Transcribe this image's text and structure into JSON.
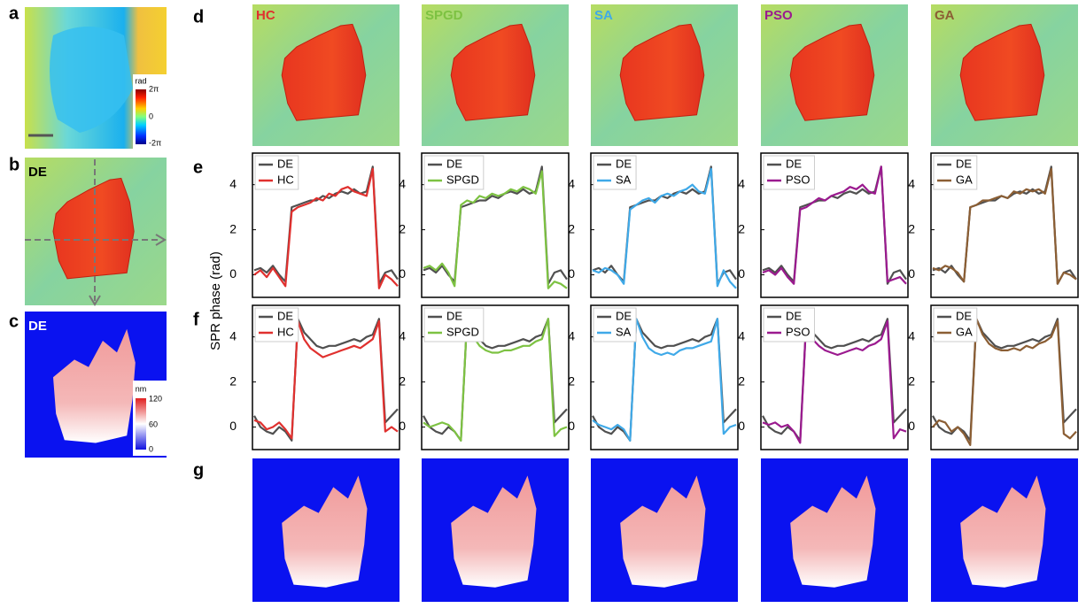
{
  "panels": {
    "a": {
      "label": "a",
      "colorbar": {
        "title": "rad",
        "ticks": [
          "2π",
          0,
          "-2π"
        ]
      }
    },
    "b": {
      "label": "b",
      "tag": "DE"
    },
    "c": {
      "label": "c",
      "tag": "DE",
      "colorbar": {
        "title": "nm",
        "ticks": [
          120,
          60,
          0
        ]
      }
    },
    "d": {
      "label": "d"
    },
    "e": {
      "label": "e"
    },
    "f": {
      "label": "f"
    },
    "g": {
      "label": "g"
    }
  },
  "y_axis_label": "SPR phase (rad)",
  "chart_data": [
    {
      "type": "line",
      "categories": [
        null,
        null,
        null,
        null,
        null,
        null,
        null,
        null,
        null,
        null,
        null,
        null,
        null,
        null,
        null,
        null,
        null,
        null,
        null,
        null,
        null,
        null,
        null,
        null
      ],
      "ylim": [
        -1,
        5.4
      ],
      "yticks": [
        0,
        2,
        4
      ],
      "series": [
        {
          "name": "DE",
          "color": "#505050",
          "values": [
            0.2,
            0.3,
            0.1,
            0.4,
            0.0,
            -0.3,
            3.0,
            3.1,
            3.2,
            3.3,
            3.3,
            3.5,
            3.4,
            3.6,
            3.7,
            3.6,
            3.8,
            3.6,
            3.7,
            4.8,
            -0.4,
            0.1,
            0.2,
            -0.2
          ]
        },
        {
          "name": "HC",
          "color": "#e0302e",
          "values": [
            0.0,
            0.2,
            -0.1,
            0.3,
            -0.1,
            -0.5,
            2.8,
            3.0,
            3.1,
            3.2,
            3.4,
            3.3,
            3.6,
            3.5,
            3.8,
            3.9,
            3.7,
            3.6,
            3.5,
            4.7,
            -0.6,
            0.0,
            -0.2,
            -0.5
          ]
        }
      ]
    },
    {
      "type": "line",
      "categories": [
        null,
        null,
        null,
        null,
        null,
        null,
        null,
        null,
        null,
        null,
        null,
        null,
        null,
        null,
        null,
        null,
        null,
        null,
        null,
        null,
        null,
        null,
        null,
        null
      ],
      "ylim": [
        -1,
        5.4
      ],
      "yticks": [
        0,
        2,
        4
      ],
      "series": [
        {
          "name": "DE",
          "color": "#505050",
          "values": [
            0.2,
            0.3,
            0.1,
            0.4,
            0.0,
            -0.3,
            3.0,
            3.1,
            3.2,
            3.3,
            3.3,
            3.5,
            3.4,
            3.6,
            3.7,
            3.6,
            3.8,
            3.6,
            3.7,
            4.8,
            -0.4,
            0.1,
            0.2,
            -0.2
          ]
        },
        {
          "name": "SPGD",
          "color": "#7dc242",
          "values": [
            0.3,
            0.4,
            0.2,
            0.5,
            0.1,
            -0.5,
            3.1,
            3.3,
            3.2,
            3.5,
            3.4,
            3.6,
            3.5,
            3.6,
            3.8,
            3.7,
            3.9,
            3.8,
            3.6,
            4.6,
            -0.6,
            -0.3,
            -0.4,
            -0.6
          ]
        }
      ]
    },
    {
      "type": "line",
      "categories": [
        null,
        null,
        null,
        null,
        null,
        null,
        null,
        null,
        null,
        null,
        null,
        null,
        null,
        null,
        null,
        null,
        null,
        null,
        null,
        null,
        null,
        null,
        null,
        null
      ],
      "ylim": [
        -1,
        5.4
      ],
      "yticks": [
        0,
        2,
        4
      ],
      "series": [
        {
          "name": "DE",
          "color": "#505050",
          "values": [
            0.2,
            0.3,
            0.1,
            0.4,
            0.0,
            -0.3,
            3.0,
            3.1,
            3.2,
            3.3,
            3.3,
            3.5,
            3.4,
            3.6,
            3.7,
            3.6,
            3.8,
            3.6,
            3.7,
            4.8,
            -0.4,
            0.1,
            0.2,
            -0.2
          ]
        },
        {
          "name": "SA",
          "color": "#3fa9e8",
          "values": [
            0.2,
            0.1,
            0.3,
            0.2,
            0.0,
            -0.4,
            2.9,
            3.1,
            3.3,
            3.4,
            3.2,
            3.5,
            3.6,
            3.5,
            3.7,
            3.8,
            4.0,
            3.7,
            3.6,
            4.7,
            -0.5,
            0.2,
            -0.3,
            -0.6
          ]
        }
      ]
    },
    {
      "type": "line",
      "categories": [
        null,
        null,
        null,
        null,
        null,
        null,
        null,
        null,
        null,
        null,
        null,
        null,
        null,
        null,
        null,
        null,
        null,
        null,
        null,
        null,
        null,
        null,
        null,
        null
      ],
      "ylim": [
        -1,
        5.4
      ],
      "yticks": [
        0,
        2,
        4
      ],
      "series": [
        {
          "name": "DE",
          "color": "#505050",
          "values": [
            0.2,
            0.3,
            0.1,
            0.4,
            0.0,
            -0.3,
            3.0,
            3.1,
            3.2,
            3.3,
            3.3,
            3.5,
            3.4,
            3.6,
            3.7,
            3.6,
            3.8,
            3.6,
            3.7,
            4.8,
            -0.4,
            0.1,
            0.2,
            -0.2
          ]
        },
        {
          "name": "PSO",
          "color": "#9b1a8f",
          "values": [
            0.1,
            0.2,
            0.0,
            0.3,
            -0.1,
            -0.4,
            2.9,
            3.0,
            3.2,
            3.4,
            3.3,
            3.5,
            3.6,
            3.7,
            3.9,
            3.8,
            4.0,
            3.7,
            3.6,
            4.8,
            -0.3,
            -0.2,
            -0.1,
            -0.4
          ]
        }
      ]
    },
    {
      "type": "line",
      "categories": [
        null,
        null,
        null,
        null,
        null,
        null,
        null,
        null,
        null,
        null,
        null,
        null,
        null,
        null,
        null,
        null,
        null,
        null,
        null,
        null,
        null,
        null,
        null,
        null
      ],
      "ylim": [
        -1,
        5.4
      ],
      "yticks": [
        0,
        2,
        4
      ],
      "series": [
        {
          "name": "DE",
          "color": "#505050",
          "values": [
            0.2,
            0.3,
            0.1,
            0.4,
            0.0,
            -0.3,
            3.0,
            3.1,
            3.2,
            3.3,
            3.3,
            3.5,
            3.4,
            3.6,
            3.7,
            3.6,
            3.8,
            3.6,
            3.7,
            4.8,
            -0.4,
            0.1,
            0.2,
            -0.2
          ]
        },
        {
          "name": "GA",
          "color": "#8b5e34",
          "values": [
            0.3,
            0.2,
            0.4,
            0.3,
            0.1,
            -0.3,
            3.0,
            3.1,
            3.3,
            3.3,
            3.4,
            3.5,
            3.4,
            3.7,
            3.6,
            3.8,
            3.7,
            3.8,
            3.6,
            4.7,
            -0.4,
            0.1,
            0.0,
            -0.2
          ]
        }
      ]
    },
    {
      "type": "line",
      "categories": [
        null,
        null,
        null,
        null,
        null,
        null,
        null,
        null,
        null,
        null,
        null,
        null,
        null,
        null,
        null,
        null,
        null,
        null,
        null,
        null,
        null,
        null,
        null,
        null
      ],
      "ylim": [
        -1,
        5.4
      ],
      "yticks": [
        0,
        2,
        4
      ],
      "series": [
        {
          "name": "DE",
          "color": "#505050",
          "values": [
            0.5,
            0.0,
            -0.2,
            -0.3,
            0.0,
            -0.2,
            -0.6,
            4.8,
            4.2,
            3.9,
            3.6,
            3.5,
            3.6,
            3.6,
            3.7,
            3.8,
            3.9,
            3.8,
            4.0,
            4.1,
            4.8,
            0.2,
            0.5,
            0.8
          ]
        },
        {
          "name": "HC",
          "color": "#e0302e",
          "values": [
            0.3,
            0.2,
            -0.1,
            0.0,
            0.2,
            -0.1,
            -0.5,
            4.7,
            3.9,
            3.5,
            3.3,
            3.1,
            3.2,
            3.3,
            3.4,
            3.5,
            3.6,
            3.5,
            3.7,
            3.9,
            4.7,
            -0.2,
            0.0,
            -0.2
          ]
        }
      ]
    },
    {
      "type": "line",
      "categories": [
        null,
        null,
        null,
        null,
        null,
        null,
        null,
        null,
        null,
        null,
        null,
        null,
        null,
        null,
        null,
        null,
        null,
        null,
        null,
        null,
        null,
        null,
        null,
        null
      ],
      "ylim": [
        -1,
        5.4
      ],
      "yticks": [
        0,
        2,
        4
      ],
      "series": [
        {
          "name": "DE",
          "color": "#505050",
          "values": [
            0.5,
            0.0,
            -0.2,
            -0.3,
            0.0,
            -0.2,
            -0.6,
            4.8,
            4.2,
            3.9,
            3.6,
            3.5,
            3.6,
            3.6,
            3.7,
            3.8,
            3.9,
            3.8,
            4.0,
            4.1,
            4.8,
            0.2,
            0.5,
            0.8
          ]
        },
        {
          "name": "SPGD",
          "color": "#7dc242",
          "values": [
            0.2,
            0.0,
            0.1,
            0.2,
            0.1,
            -0.2,
            -0.6,
            4.8,
            4.0,
            3.6,
            3.4,
            3.3,
            3.3,
            3.4,
            3.4,
            3.5,
            3.6,
            3.6,
            3.8,
            3.9,
            4.8,
            -0.4,
            -0.1,
            0.0
          ]
        }
      ]
    },
    {
      "type": "line",
      "categories": [
        null,
        null,
        null,
        null,
        null,
        null,
        null,
        null,
        null,
        null,
        null,
        null,
        null,
        null,
        null,
        null,
        null,
        null,
        null,
        null,
        null,
        null,
        null,
        null
      ],
      "ylim": [
        -1,
        5.4
      ],
      "yticks": [
        0,
        2,
        4
      ],
      "series": [
        {
          "name": "DE",
          "color": "#505050",
          "values": [
            0.5,
            0.0,
            -0.2,
            -0.3,
            0.0,
            -0.2,
            -0.6,
            4.8,
            4.2,
            3.9,
            3.6,
            3.5,
            3.6,
            3.6,
            3.7,
            3.8,
            3.9,
            3.8,
            4.0,
            4.1,
            4.8,
            0.2,
            0.5,
            0.8
          ]
        },
        {
          "name": "SA",
          "color": "#3fa9e8",
          "values": [
            0.3,
            0.1,
            0.0,
            -0.1,
            0.1,
            -0.1,
            -0.6,
            4.8,
            4.0,
            3.5,
            3.3,
            3.2,
            3.3,
            3.2,
            3.4,
            3.5,
            3.5,
            3.6,
            3.7,
            3.8,
            4.8,
            -0.3,
            0.0,
            0.1
          ]
        }
      ]
    },
    {
      "type": "line",
      "categories": [
        null,
        null,
        null,
        null,
        null,
        null,
        null,
        null,
        null,
        null,
        null,
        null,
        null,
        null,
        null,
        null,
        null,
        null,
        null,
        null,
        null,
        null,
        null,
        null
      ],
      "ylim": [
        -1,
        5.4
      ],
      "yticks": [
        0,
        2,
        4
      ],
      "series": [
        {
          "name": "DE",
          "color": "#505050",
          "values": [
            0.5,
            0.0,
            -0.2,
            -0.3,
            0.0,
            -0.2,
            -0.6,
            4.8,
            4.2,
            3.9,
            3.6,
            3.5,
            3.6,
            3.6,
            3.7,
            3.8,
            3.9,
            3.8,
            4.0,
            4.1,
            4.8,
            0.2,
            0.5,
            0.8
          ]
        },
        {
          "name": "PSO",
          "color": "#9b1a8f",
          "values": [
            0.2,
            0.1,
            0.2,
            0.0,
            0.1,
            -0.2,
            -0.7,
            4.8,
            3.9,
            3.6,
            3.4,
            3.3,
            3.2,
            3.3,
            3.4,
            3.5,
            3.4,
            3.6,
            3.7,
            3.9,
            4.7,
            -0.5,
            -0.1,
            -0.2
          ]
        }
      ]
    },
    {
      "type": "line",
      "categories": [
        null,
        null,
        null,
        null,
        null,
        null,
        null,
        null,
        null,
        null,
        null,
        null,
        null,
        null,
        null,
        null,
        null,
        null,
        null,
        null,
        null,
        null,
        null,
        null
      ],
      "ylim": [
        -1,
        5.4
      ],
      "yticks": [
        0,
        2,
        4
      ],
      "series": [
        {
          "name": "DE",
          "color": "#505050",
          "values": [
            0.5,
            0.0,
            -0.2,
            -0.3,
            0.0,
            -0.2,
            -0.6,
            4.8,
            4.2,
            3.9,
            3.6,
            3.5,
            3.6,
            3.6,
            3.7,
            3.8,
            3.9,
            3.8,
            4.0,
            4.1,
            4.8,
            0.2,
            0.5,
            0.8
          ]
        },
        {
          "name": "GA",
          "color": "#8b5e34",
          "values": [
            0.0,
            0.3,
            0.2,
            -0.2,
            0.0,
            -0.3,
            -0.8,
            4.8,
            4.1,
            3.7,
            3.5,
            3.4,
            3.4,
            3.5,
            3.4,
            3.6,
            3.5,
            3.7,
            3.8,
            4.0,
            4.7,
            -0.3,
            -0.5,
            -0.2
          ]
        }
      ]
    }
  ]
}
